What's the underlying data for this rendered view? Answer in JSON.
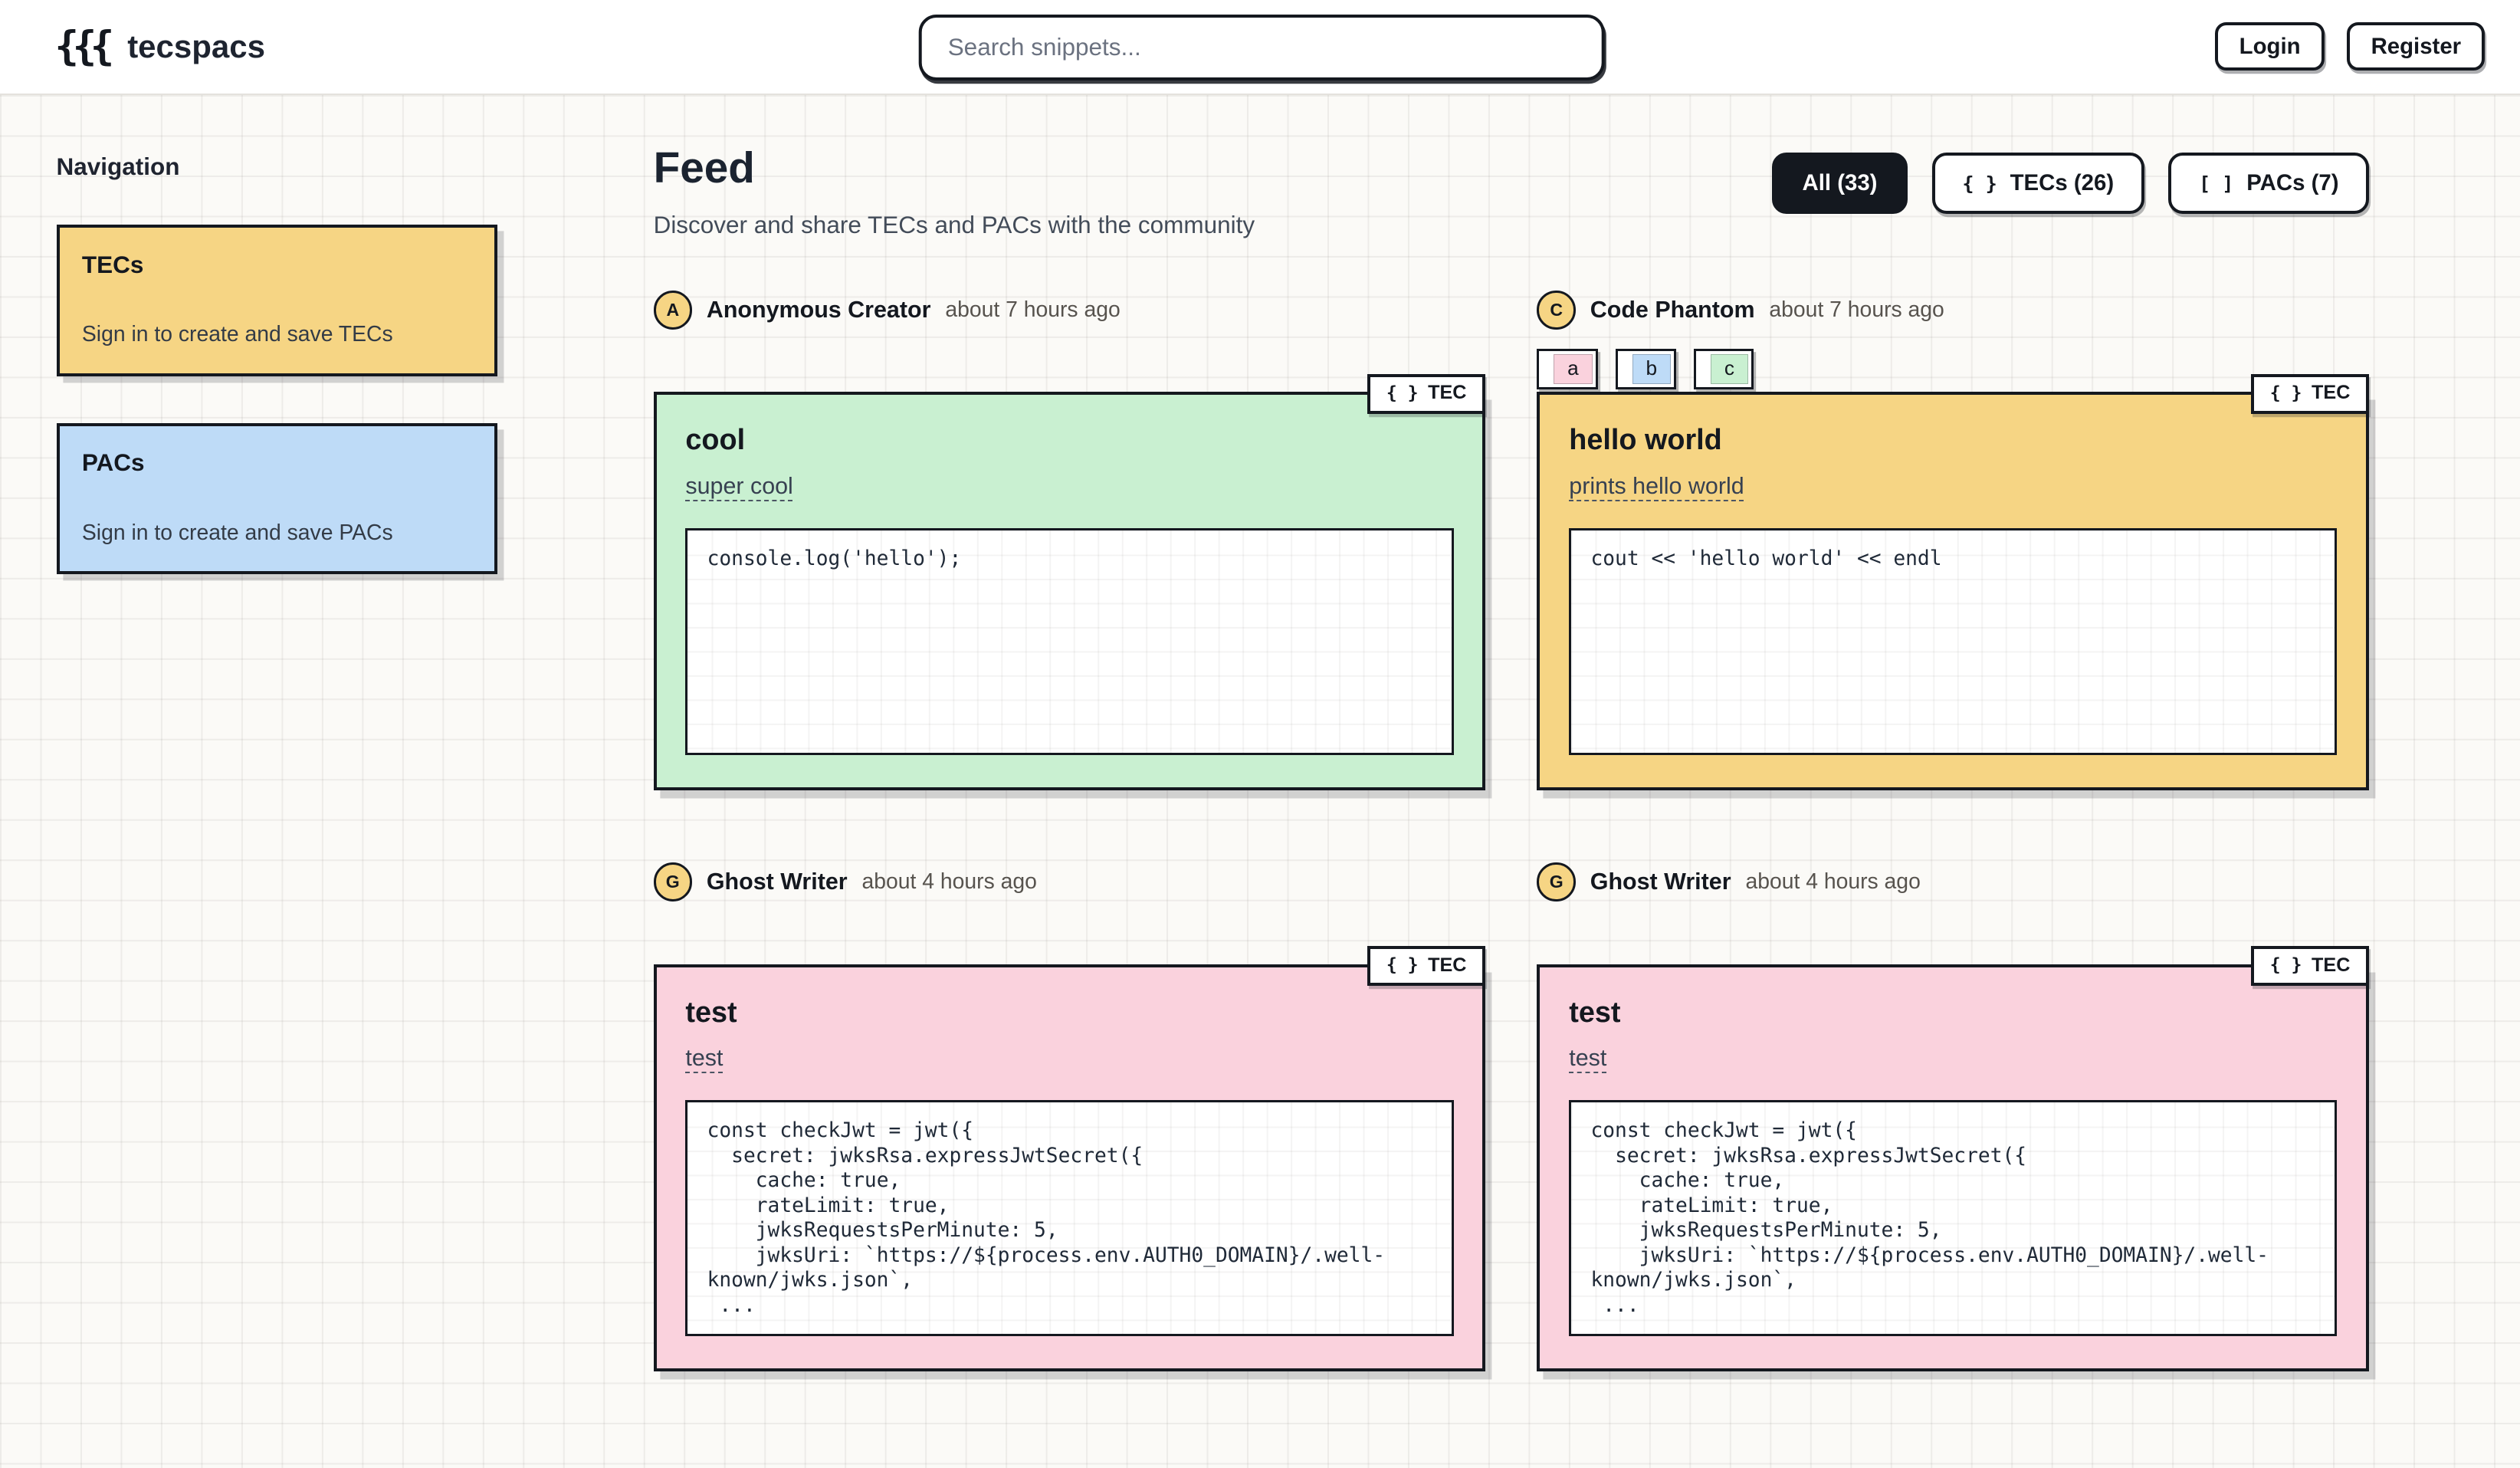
{
  "header": {
    "logo": "{{{",
    "brand": "tecspacs",
    "search": {
      "placeholder": "Search snippets..."
    },
    "auth": {
      "login": "Login",
      "register": "Register"
    }
  },
  "sidebar": {
    "heading": "Navigation",
    "cards": [
      {
        "title": "TECs",
        "text": "Sign in to create and save TECs",
        "color": "#f6d584"
      },
      {
        "title": "PACs",
        "text": "Sign in to create and save PACs",
        "color": "#bedbf7"
      }
    ]
  },
  "feed": {
    "title": "Feed",
    "subtitle": "Discover and share TECs and PACs with the community",
    "filters": [
      {
        "icon": "",
        "label": "All (33)",
        "active": true
      },
      {
        "icon": "{ }",
        "label": "TECs (26)",
        "active": false
      },
      {
        "icon": "[ ]",
        "label": "PACs (7)",
        "active": false
      }
    ]
  },
  "posts": [
    {
      "avatar": "A",
      "author": "Anonymous Creator",
      "time": "about 7 hours ago",
      "badge_icon": "{ }",
      "badge_label": "TEC",
      "color": "#c9f0d1",
      "title": "cool",
      "description": "super cool",
      "code": "console.log('hello');",
      "tags": []
    },
    {
      "avatar": "C",
      "author": "Code Phantom",
      "time": "about 7 hours ago",
      "badge_icon": "{ }",
      "badge_label": "TEC",
      "color": "#f6d584",
      "title": "hello world",
      "description": "prints hello world",
      "code": "cout << 'hello world' << endl",
      "tags": [
        {
          "label": "a",
          "color": "#fad2dd"
        },
        {
          "label": "b",
          "color": "#bedbf7"
        },
        {
          "label": "c",
          "color": "#c9f0d1"
        }
      ]
    },
    {
      "avatar": "G",
      "author": "Ghost Writer",
      "time": "about 4 hours ago",
      "badge_icon": "{ }",
      "badge_label": "TEC",
      "color": "#fad2dd",
      "title": "test",
      "description": "test",
      "code": "const checkJwt = jwt({\n  secret: jwksRsa.expressJwtSecret({\n    cache: true,\n    rateLimit: true,\n    jwksRequestsPerMinute: 5,\n    jwksUri: `https://${process.env.AUTH0_DOMAIN}/.well-known/jwks.json`,\n ...",
      "tags": []
    },
    {
      "avatar": "G",
      "author": "Ghost Writer",
      "time": "about 4 hours ago",
      "badge_icon": "{ }",
      "badge_label": "TEC",
      "color": "#fad2dd",
      "title": "test",
      "description": "test",
      "code": "const checkJwt = jwt({\n  secret: jwksRsa.expressJwtSecret({\n    cache: true,\n    rateLimit: true,\n    jwksRequestsPerMinute: 5,\n    jwksUri: `https://${process.env.AUTH0_DOMAIN}/.well-known/jwks.json`,\n ...",
      "tags": []
    }
  ]
}
